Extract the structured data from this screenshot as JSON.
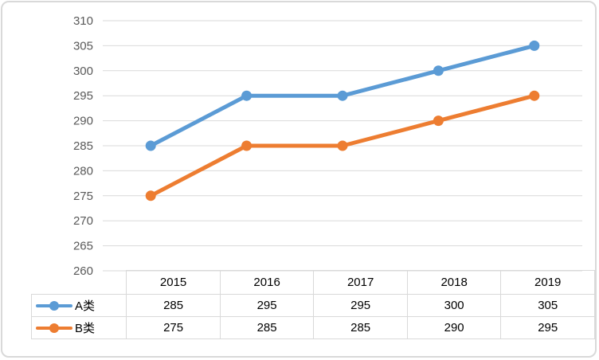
{
  "chart_data": {
    "type": "line",
    "title": "",
    "xlabel": "",
    "ylabel": "",
    "categories": [
      "2015",
      "2016",
      "2017",
      "2018",
      "2019"
    ],
    "series": [
      {
        "name": "A类",
        "values": [
          285,
          295,
          295,
          300,
          305
        ],
        "color": "#5b9bd5"
      },
      {
        "name": "B类",
        "values": [
          275,
          285,
          285,
          290,
          295
        ],
        "color": "#ed7d31"
      }
    ],
    "ylim": [
      260,
      310
    ],
    "yticks": [
      260,
      265,
      270,
      275,
      280,
      285,
      290,
      295,
      300,
      305,
      310
    ],
    "grid": true,
    "legend_position": "data-table-left"
  },
  "style": {
    "grid_color": "#d9d9d9",
    "table_border_color": "#d9d9d9",
    "text_color": "#595959",
    "background": "#ffffff",
    "frame_border_color": "#d9d9d9"
  }
}
